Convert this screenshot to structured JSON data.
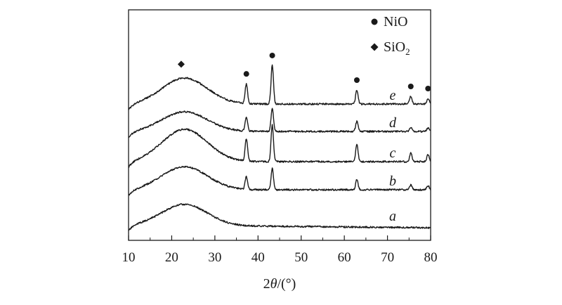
{
  "chart_data": {
    "type": "line",
    "xlabel_parts": [
      "2",
      "θ",
      "/(°)"
    ],
    "ylabel": "",
    "xlim": [
      10,
      80
    ],
    "x_ticks": [
      10,
      20,
      30,
      40,
      50,
      60,
      70,
      80
    ],
    "y_ticks": [],
    "legend": {
      "placement": "top-right",
      "entries": [
        {
          "marker": "circle",
          "label_main": "NiO",
          "label_sub": ""
        },
        {
          "marker": "diamond",
          "label_main": "SiO",
          "label_sub": "2"
        }
      ]
    },
    "curve_color": "#1a1a1a",
    "series": [
      {
        "name": "a",
        "offset": 0,
        "halo_amp": 30,
        "peaks": [],
        "end_level": -4
      },
      {
        "name": "b",
        "offset": 50,
        "halo_amp": 33,
        "peaks": [
          [
            37.3,
            18
          ],
          [
            43.3,
            30
          ],
          [
            62.9,
            14
          ],
          [
            75.4,
            7
          ],
          [
            79.4,
            6
          ]
        ],
        "end_level": 0
      },
      {
        "name": "c",
        "offset": 90,
        "halo_amp": 46,
        "peaks": [
          [
            37.3,
            32
          ],
          [
            43.3,
            52
          ],
          [
            62.9,
            24
          ],
          [
            75.4,
            12
          ],
          [
            79.4,
            10
          ]
        ],
        "end_level": 0
      },
      {
        "name": "d",
        "offset": 133,
        "halo_amp": 28,
        "peaks": [
          [
            37.3,
            20
          ],
          [
            43.3,
            32
          ],
          [
            62.9,
            14
          ],
          [
            75.4,
            6
          ],
          [
            79.4,
            5
          ]
        ],
        "end_level": 0
      },
      {
        "name": "e",
        "offset": 172,
        "halo_amp": 37,
        "peaks": [
          [
            37.3,
            28
          ],
          [
            43.3,
            55
          ],
          [
            62.9,
            20
          ],
          [
            75.4,
            11
          ],
          [
            79.4,
            8
          ]
        ],
        "end_level": 0
      }
    ],
    "phase_markers": [
      {
        "phase": "SiO2",
        "marker": "diamond",
        "x": 22.2
      },
      {
        "phase": "NiO",
        "marker": "circle",
        "x": 37.3
      },
      {
        "phase": "NiO",
        "marker": "circle",
        "x": 43.3
      },
      {
        "phase": "NiO",
        "marker": "circle",
        "x": 62.9
      },
      {
        "phase": "NiO",
        "marker": "circle",
        "x": 75.4
      },
      {
        "phase": "NiO",
        "marker": "circle",
        "x": 79.4
      }
    ]
  }
}
